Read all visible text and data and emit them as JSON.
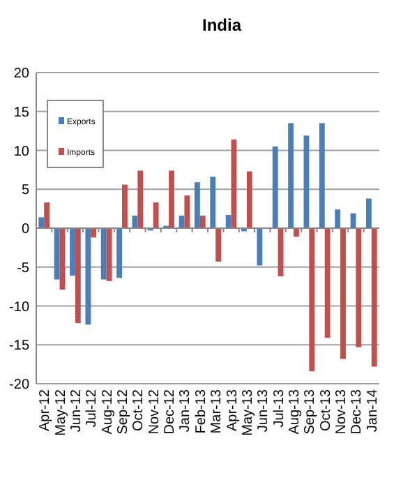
{
  "chart_data": {
    "type": "bar",
    "title": "India",
    "categories": [
      "Apr-12",
      "May-12",
      "Jun-12",
      "Jul-12",
      "Aug-12",
      "Sep-12",
      "Oct-12",
      "Nov-12",
      "Dec-12",
      "Jan-13",
      "Feb-13",
      "Mar-13",
      "Apr-13",
      "May-13",
      "Jun-13",
      "Jul-13",
      "Aug-13",
      "Sep-13",
      "Oct-13",
      "Nov-13",
      "Dec-13",
      "Jan-14"
    ],
    "series": [
      {
        "name": "Exports",
        "color": "#4a7ebb",
        "values": [
          1.4,
          -6.6,
          -6.1,
          -12.4,
          -6.6,
          -6.4,
          1.6,
          -0.3,
          0.3,
          1.6,
          5.9,
          6.6,
          1.7,
          -0.4,
          -4.8,
          10.5,
          13.5,
          11.9,
          13.5,
          2.4,
          1.9,
          3.8
        ]
      },
      {
        "name": "Imports",
        "color": "#c0504d",
        "values": [
          3.3,
          -7.9,
          -12.2,
          -1.2,
          -6.8,
          5.6,
          7.4,
          3.3,
          7.4,
          4.2,
          1.6,
          -4.3,
          11.4,
          7.3,
          null,
          -6.2,
          -1.1,
          -18.4,
          -14.1,
          -16.8,
          -15.3,
          -17.8
        ]
      }
    ],
    "ylim": [
      -20,
      20
    ],
    "yticks": [
      -20,
      -15,
      -10,
      -5,
      0,
      5,
      10,
      15,
      20
    ],
    "grid": "y",
    "legend": "top left"
  }
}
